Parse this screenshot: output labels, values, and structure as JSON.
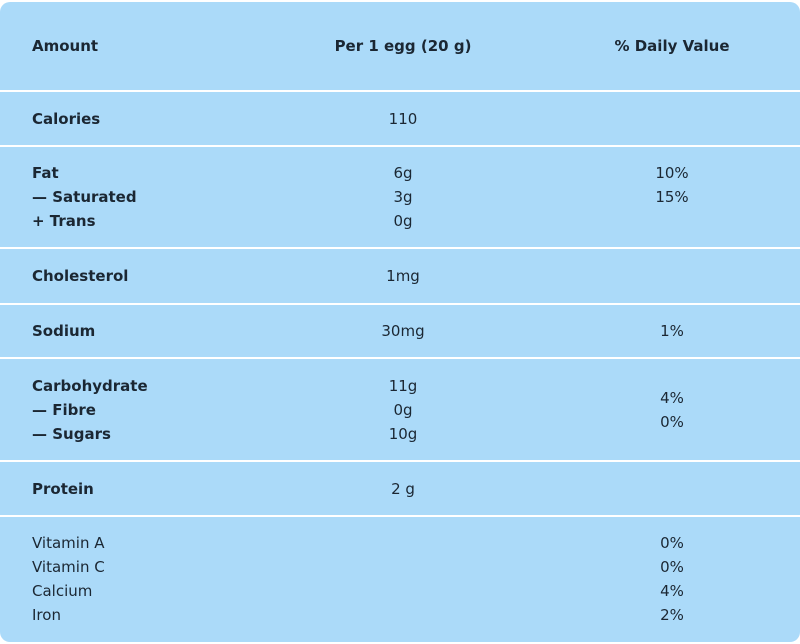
{
  "table": {
    "header": [
      "Amount",
      "Per 1 egg (20 g)",
      "% Daily Value"
    ],
    "rows": [
      {
        "label": [
          "Calories"
        ],
        "amount": [
          "110"
        ],
        "daily": []
      },
      {
        "label": [
          "Fat",
          "— Saturated",
          "+ Trans"
        ],
        "amount": [
          "6g",
          "3g",
          "0g"
        ],
        "daily": [
          "10%",
          "15%"
        ]
      },
      {
        "label": [
          "Cholesterol"
        ],
        "amount": [
          "1mg"
        ],
        "daily": []
      },
      {
        "label": [
          "Sodium"
        ],
        "amount": [
          "30mg"
        ],
        "daily": [
          "1%"
        ]
      },
      {
        "label": [
          "Carbohydrate",
          "— Fibre",
          "— Sugars"
        ],
        "amount": [
          "11g",
          "0g",
          "10g"
        ],
        "daily": [
          "4%",
          "0%"
        ]
      },
      {
        "label": [
          "Protein"
        ],
        "amount": [
          "2 g"
        ],
        "daily": []
      },
      {
        "label": [
          "Vitamin A",
          "Vitamin C",
          "Calcium",
          "Iron"
        ],
        "amount": [],
        "daily": [
          "0%",
          "0%",
          "4%",
          "2%"
        ]
      }
    ]
  }
}
